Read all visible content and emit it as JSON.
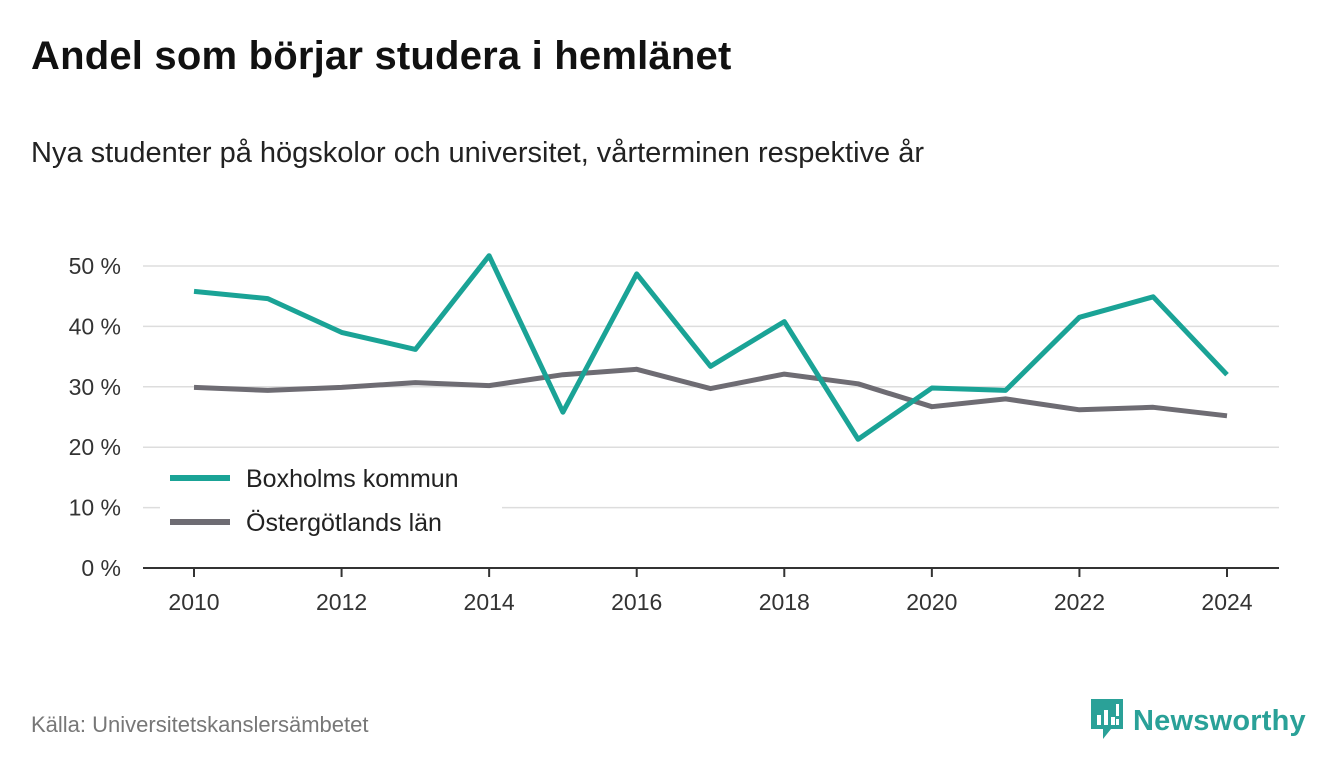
{
  "header": {
    "title": "Andel som börjar studera i hemlänet",
    "subtitle": "Nya studenter på högskolor och universitet, vårterminen respektive år"
  },
  "footer": {
    "source": "Källa: Universitetskanslersämbetet",
    "brand": "Newsworthy",
    "brand_icon": "newsworthy-logo-icon"
  },
  "colors": {
    "boxholm": "#1aa396",
    "ostergotland": "#6e6c73",
    "grid": "#dddddd",
    "axis": "#333333",
    "brand": "#2aa198"
  },
  "chart_data": {
    "type": "line",
    "x": [
      2010,
      2011,
      2012,
      2013,
      2014,
      2015,
      2016,
      2017,
      2018,
      2019,
      2020,
      2021,
      2022,
      2023,
      2024
    ],
    "x_ticks": [
      "2010",
      "2012",
      "2014",
      "2016",
      "2018",
      "2020",
      "2022",
      "2024"
    ],
    "y_ticks": [
      "0 %",
      "10 %",
      "20 %",
      "30 %",
      "40 %",
      "50 %"
    ],
    "ylim": [
      0,
      50
    ],
    "grid": true,
    "legend_position": "bottom-left",
    "series": [
      {
        "name": "Boxholms kommun",
        "values": [
          45.8,
          44.6,
          39.0,
          36.2,
          51.7,
          25.8,
          48.7,
          33.4,
          40.8,
          21.3,
          29.8,
          29.4,
          41.5,
          44.9,
          32.0
        ]
      },
      {
        "name": "Östergötlands län",
        "values": [
          29.9,
          29.4,
          29.9,
          30.7,
          30.2,
          32.0,
          32.9,
          29.7,
          32.1,
          30.5,
          26.7,
          28.0,
          26.2,
          26.6,
          25.2
        ]
      }
    ]
  }
}
